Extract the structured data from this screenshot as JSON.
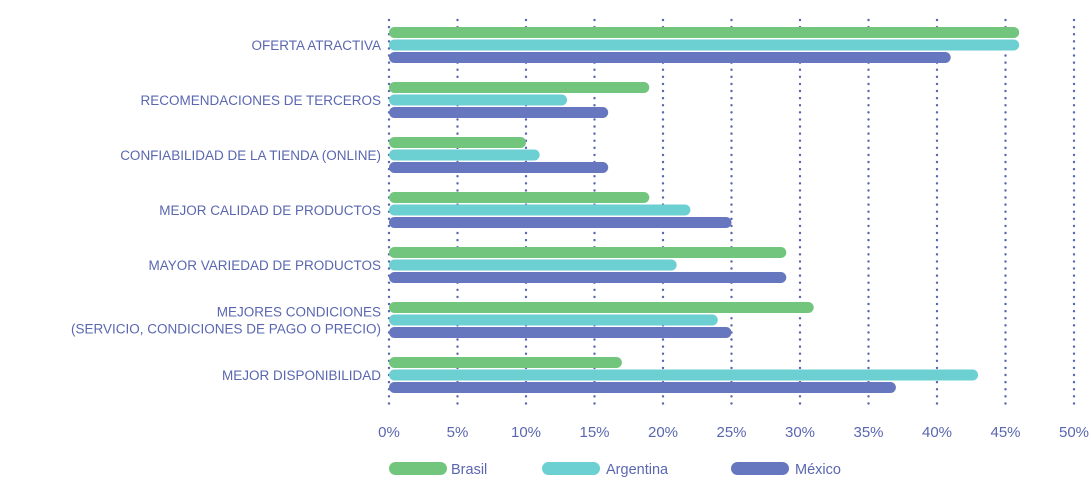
{
  "chart_data": {
    "type": "bar",
    "orientation": "horizontal",
    "categories": [
      "OFERTA ATRACTIVA",
      "RECOMENDACIONES DE TERCEROS",
      "CONFIABILIDAD DE LA TIENDA (ONLINE)",
      "MEJOR CALIDAD DE PRODUCTOS",
      "MAYOR VARIEDAD DE PRODUCTOS",
      "MEJORES CONDICIONES\n(SERVICIO, CONDICIONES DE PAGO O PRECIO)",
      "MEJOR DISPONIBILIDAD"
    ],
    "series": [
      {
        "name": "Brasil",
        "color": "#72c57d",
        "values": [
          46,
          19,
          10,
          19,
          29,
          31,
          17
        ]
      },
      {
        "name": "Argentina",
        "color": "#6ccfd2",
        "values": [
          46,
          13,
          11,
          22,
          21,
          24,
          43
        ]
      },
      {
        "name": "México",
        "color": "#6676bf",
        "values": [
          41,
          16,
          16,
          25,
          29,
          25,
          37
        ]
      }
    ],
    "xlim": [
      0,
      50
    ],
    "xticks": [
      0,
      5,
      10,
      15,
      20,
      25,
      30,
      35,
      40,
      45,
      50
    ],
    "tick_labels": [
      "0%",
      "5%",
      "10%",
      "15%",
      "20%",
      "25%",
      "30%",
      "35%",
      "40%",
      "45%",
      "50%"
    ],
    "title": "",
    "xlabel": "",
    "ylabel": "",
    "grid": "vertical dotted",
    "legend": "bottom-center",
    "colors": {
      "label_text": "#5a67b0",
      "grid": "#5a67b0"
    }
  }
}
